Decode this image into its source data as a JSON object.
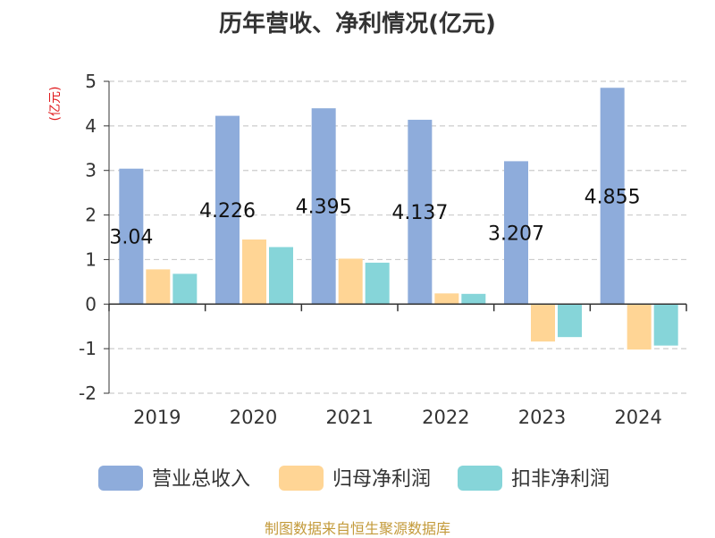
{
  "title": "历年营收、净利情况(亿元)",
  "footer": "制图数据来自恒生聚源数据库",
  "colors": {
    "revenue": "#8eacdb",
    "net_profit": "#ffd595",
    "non_recurring_profit": "#86d5d9",
    "ylabel": "#e0191c",
    "footer": "#c39a3a",
    "grid": "#cccccc",
    "axis": "#333333"
  },
  "chart_data": {
    "type": "bar",
    "title": "历年营收、净利情况(亿元)",
    "ylabel": "(亿元)",
    "xlabel": "",
    "categories": [
      "2019",
      "2020",
      "2021",
      "2022",
      "2023",
      "2024"
    ],
    "ylim": [
      -2,
      5
    ],
    "yticks": [
      "-2",
      "-1",
      "0",
      "1",
      "2",
      "3",
      "4",
      "5"
    ],
    "grid": true,
    "legend_position": "bottom",
    "series": [
      {
        "name": "营业总收入",
        "values": [
          3.04,
          4.226,
          4.395,
          4.137,
          3.207,
          4.855
        ],
        "labels": [
          "3.04",
          "4.226",
          "4.395",
          "4.137",
          "3.207",
          "4.855"
        ]
      },
      {
        "name": "归母净利润",
        "values": [
          0.78,
          1.45,
          1.02,
          0.24,
          -0.84,
          -1.02
        ]
      },
      {
        "name": "扣非净利润",
        "values": [
          0.68,
          1.28,
          0.93,
          0.23,
          -0.74,
          -0.93
        ]
      }
    ]
  }
}
